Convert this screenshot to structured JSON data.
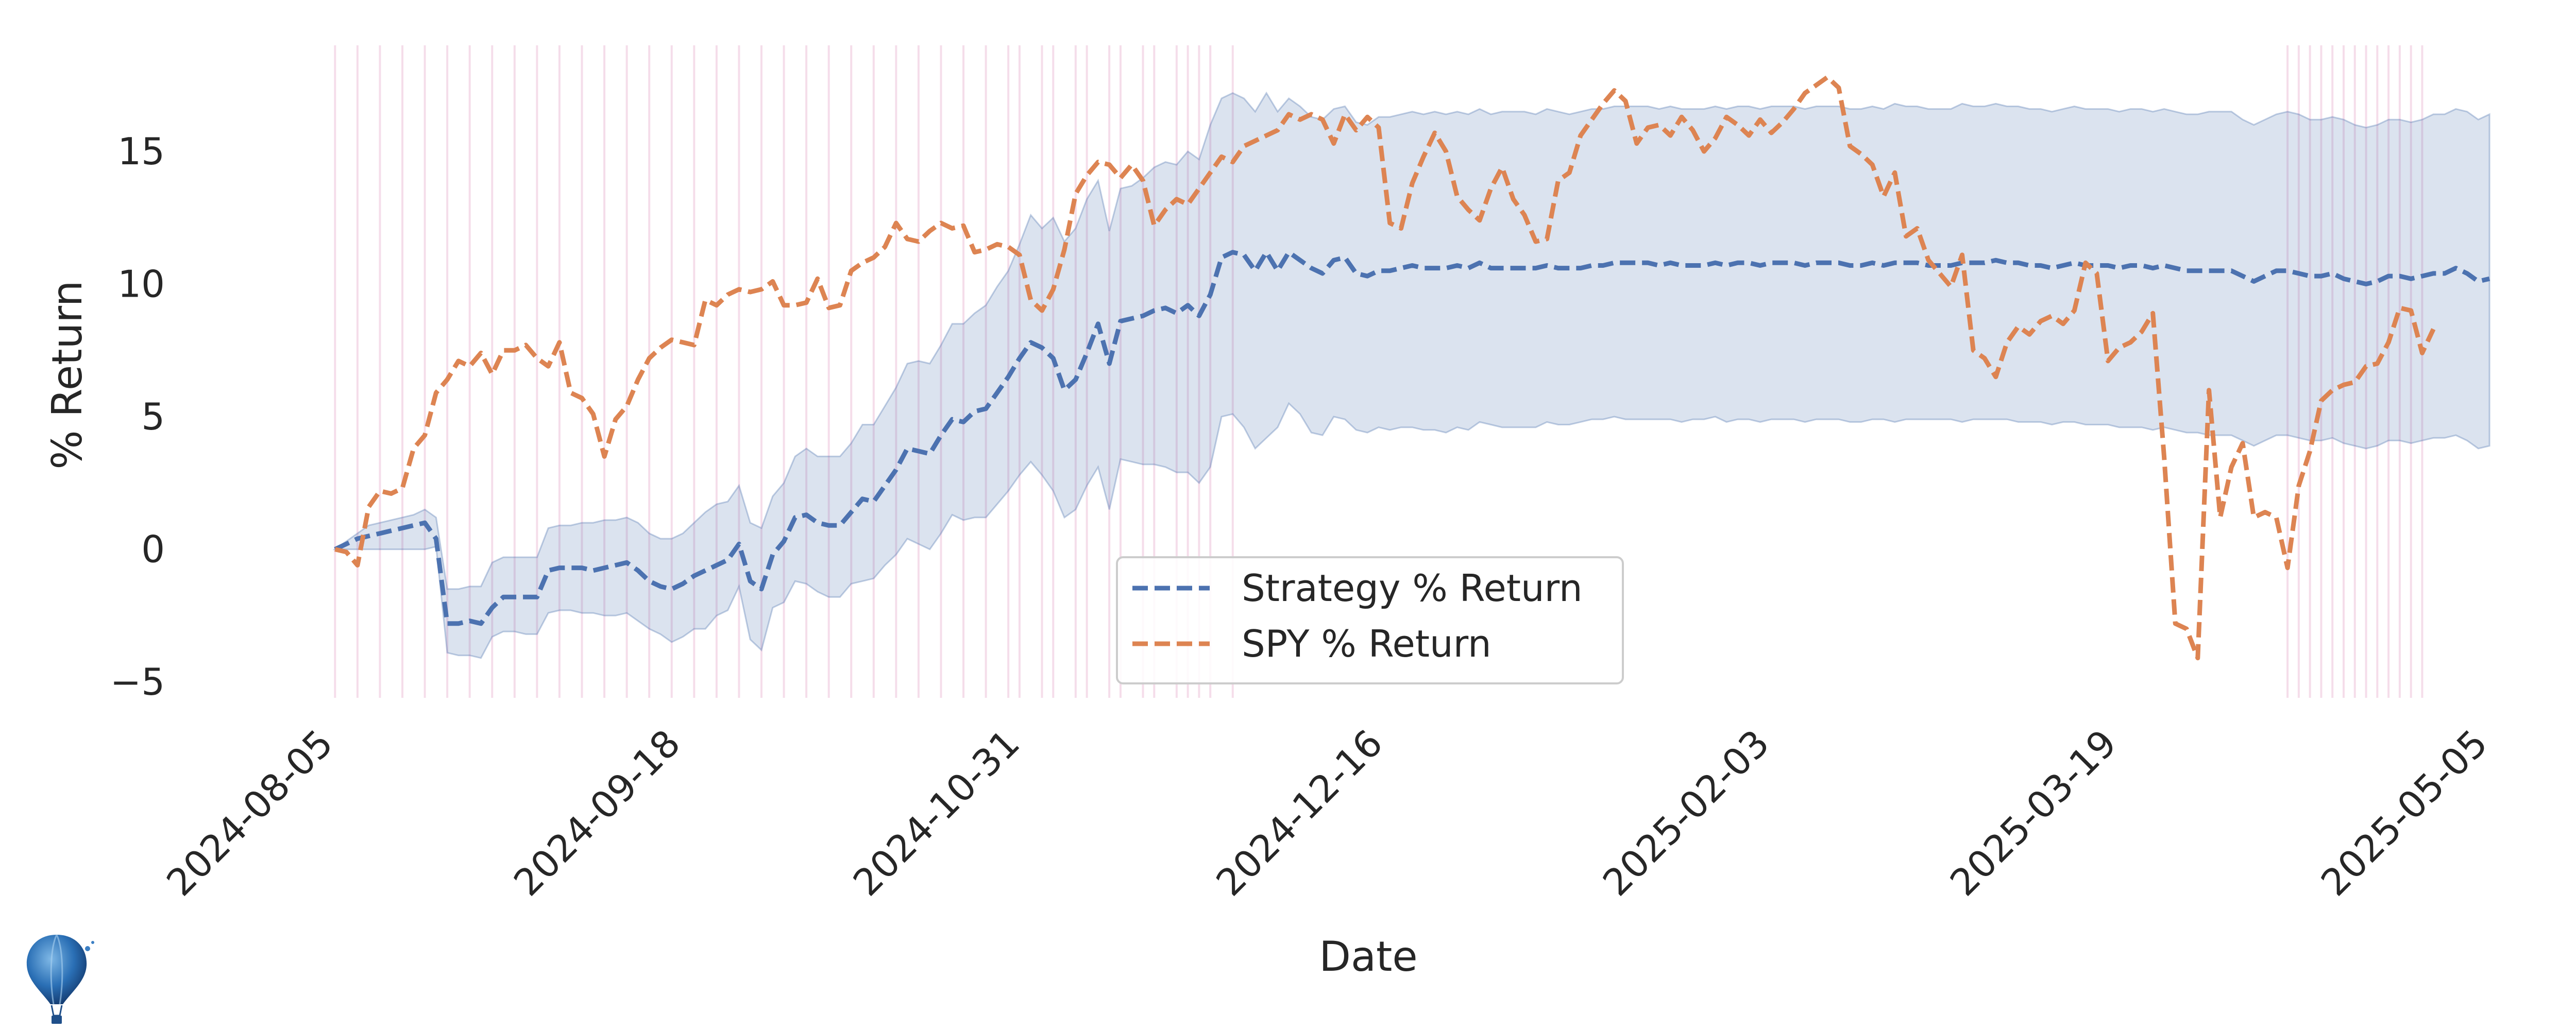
{
  "chart_data": {
    "type": "line",
    "title": "",
    "xlabel": "Date",
    "ylabel": "% Return",
    "ylim": [
      -5.6,
      19.0
    ],
    "yticks": [
      -5,
      0,
      5,
      10,
      15
    ],
    "ytick_labels": [
      "−5",
      "0",
      "5",
      "10",
      "15"
    ],
    "xlim": [
      -3,
      188
    ],
    "xticks": [
      {
        "label": "2024-08-05",
        "day": 0
      },
      {
        "label": "2024-09-18",
        "day": 44
      },
      {
        "label": "2024-10-31",
        "day": 87
      },
      {
        "label": "2024-12-16",
        "day": 133
      },
      {
        "label": "2025-02-03",
        "day": 182
      },
      {
        "label": "2025-03-19",
        "day": 226
      },
      {
        "label": "2025-05-05",
        "day": 273
      }
    ],
    "grid": false,
    "legend_position": "lower-center",
    "series": [
      {
        "name": "Strategy % Return",
        "color": "#4c72b0",
        "style": "dashed",
        "values": [
          0,
          0.2,
          0.4,
          0.5,
          0.6,
          0.7,
          0.8,
          0.9,
          1,
          0.4,
          -2.8,
          -2.8,
          -2.7,
          -2.8,
          -2.2,
          -1.8,
          -1.8,
          -1.8,
          -1.8,
          -0.8,
          -0.7,
          -0.7,
          -0.7,
          -0.8,
          -0.7,
          -0.6,
          -0.5,
          -0.8,
          -1.2,
          -1.4,
          -1.5,
          -1.3,
          -1,
          -0.8,
          -0.6,
          -0.4,
          0.2,
          -1.2,
          -1.5,
          -0.2,
          0.3,
          1.2,
          1.3,
          1.0,
          0.9,
          0.9,
          1.4,
          1.9,
          1.8,
          2.4,
          3.0,
          3.8,
          3.7,
          3.6,
          4.3,
          4.9,
          4.8,
          5.2,
          5.3,
          5.9,
          6.5,
          7.2,
          7.8,
          7.6,
          7.2,
          6.0,
          6.4,
          7.4,
          8.5,
          7.0,
          8.6,
          8.7,
          8.8,
          9.0,
          9.1,
          8.9,
          9.2,
          8.8,
          9.6,
          11.0,
          11.2,
          11.1,
          10.5,
          11.2,
          10.5,
          11.2,
          10.9,
          10.6,
          10.4,
          10.9,
          11.0,
          10.4,
          10.3,
          10.5,
          10.5,
          10.6,
          10.7,
          10.6,
          10.6,
          10.6,
          10.7,
          10.6,
          10.8,
          10.6,
          10.6,
          10.6,
          10.6,
          10.6,
          10.7,
          10.6,
          10.6,
          10.6,
          10.7,
          10.7,
          10.8,
          10.8,
          10.8,
          10.8,
          10.7,
          10.8,
          10.7,
          10.7,
          10.7,
          10.8,
          10.7,
          10.8,
          10.8,
          10.7,
          10.8,
          10.8,
          10.8,
          10.7,
          10.8,
          10.8,
          10.8,
          10.7,
          10.7,
          10.8,
          10.7,
          10.8,
          10.8,
          10.8,
          10.7,
          10.7,
          10.7,
          10.8,
          10.8,
          10.8,
          10.9,
          10.8,
          10.8,
          10.7,
          10.7,
          10.6,
          10.7,
          10.8,
          10.7,
          10.7,
          10.7,
          10.6,
          10.7,
          10.7,
          10.6,
          10.7,
          10.6,
          10.5,
          10.5,
          10.5,
          10.5,
          10.5,
          10.3,
          10.1,
          10.3,
          10.5,
          10.5,
          10.4,
          10.3,
          10.3,
          10.4,
          10.2,
          10.1,
          10.0,
          10.1,
          10.3,
          10.3,
          10.2,
          10.3,
          10.4,
          10.4,
          10.6,
          10.4,
          10.1,
          10.2
        ]
      },
      {
        "name": "SPY % Return",
        "color": "#dd8452",
        "style": "dashed",
        "values": [
          0,
          -0.1,
          -0.6,
          1.6,
          2.2,
          2.1,
          2.3,
          3.8,
          4.3,
          5.9,
          6.4,
          7.1,
          6.9,
          7.4,
          6.6,
          7.5,
          7.5,
          7.7,
          7.2,
          6.9,
          7.8,
          5.9,
          5.7,
          5.1,
          3.5,
          4.9,
          5.4,
          6.4,
          7.2,
          7.6,
          7.9,
          7.8,
          7.7,
          9.4,
          9.2,
          9.6,
          9.8,
          9.7,
          9.8,
          10.1,
          9.2,
          9.2,
          9.3,
          10.2,
          9.1,
          9.2,
          10.5,
          10.8,
          11.0,
          11.4,
          12.3,
          11.7,
          11.6,
          12.0,
          12.3,
          12.1,
          12.2,
          11.2,
          11.3,
          11.5,
          11.4,
          11.1,
          9.4,
          9.0,
          9.8,
          11.3,
          13.4,
          14.1,
          14.6,
          14.5,
          14.0,
          14.5,
          13.9,
          12.2,
          12.8,
          13.2,
          13.0,
          13.6,
          14.2,
          14.8,
          14.6,
          15.2,
          15.4,
          15.6,
          15.8,
          16.4,
          16.2,
          16.4,
          16.2,
          15.3,
          16.4,
          15.8,
          16.3,
          15.9,
          12.3,
          12.1,
          13.8,
          14.8,
          15.7,
          15.0,
          13.3,
          12.8,
          12.4,
          13.6,
          14.4,
          13.2,
          12.6,
          11.6,
          11.7,
          13.9,
          14.2,
          15.6,
          16.2,
          16.8,
          17.3,
          16.9,
          15.3,
          15.9,
          16.0,
          15.6,
          16.3,
          15.8,
          15.0,
          15.5,
          16.3,
          16.0,
          15.6,
          16.2,
          15.7,
          16.1,
          16.6,
          17.2,
          17.5,
          17.8,
          17.4,
          15.2,
          14.9,
          14.5,
          13.3,
          14.2,
          11.8,
          12.1,
          10.9,
          10.4,
          9.9,
          11.1,
          7.5,
          7.2,
          6.5,
          7.8,
          8.4,
          8.1,
          8.6,
          8.8,
          8.5,
          9.0,
          10.8,
          10.4,
          7.1,
          7.6,
          7.8,
          8.2,
          8.9,
          3.5,
          -2.8,
          -3.0,
          -4.1,
          6.0,
          1.2,
          3.1,
          4.0,
          1.2,
          1.4,
          1.2,
          -0.7,
          2.4,
          3.7,
          5.6,
          6.0,
          6.2,
          6.3,
          6.9,
          7.0,
          7.8,
          9.1,
          9.0,
          7.4,
          8.3
        ]
      }
    ],
    "band": {
      "color": "#4c72b0",
      "opacity": 0.2,
      "lower": [
        0,
        0,
        0,
        0,
        0,
        0,
        0,
        0,
        0,
        0.1,
        -3.9,
        -4.0,
        -4.0,
        -4.1,
        -3.3,
        -3.1,
        -3.1,
        -3.2,
        -3.2,
        -2.4,
        -2.3,
        -2.3,
        -2.4,
        -2.4,
        -2.5,
        -2.5,
        -2.4,
        -2.7,
        -3.0,
        -3.2,
        -3.5,
        -3.3,
        -3.0,
        -3.0,
        -2.5,
        -2.3,
        -1.4,
        -3.4,
        -3.8,
        -2.2,
        -2.0,
        -1.2,
        -1.3,
        -1.6,
        -1.8,
        -1.8,
        -1.3,
        -1.2,
        -1.1,
        -0.6,
        -0.2,
        0.4,
        0.2,
        0.0,
        0.6,
        1.3,
        1.1,
        1.2,
        1.2,
        1.7,
        2.2,
        2.8,
        3.3,
        2.8,
        2.2,
        1.2,
        1.5,
        2.4,
        3.1,
        1.5,
        3.4,
        3.3,
        3.2,
        3.2,
        3.1,
        2.9,
        2.9,
        2.5,
        3.1,
        5.0,
        5.1,
        4.6,
        3.8,
        4.2,
        4.6,
        5.5,
        5.1,
        4.4,
        4.3,
        5.0,
        4.9,
        4.5,
        4.4,
        4.6,
        4.5,
        4.6,
        4.6,
        4.5,
        4.5,
        4.4,
        4.6,
        4.5,
        4.8,
        4.7,
        4.6,
        4.6,
        4.6,
        4.6,
        4.8,
        4.7,
        4.7,
        4.8,
        4.9,
        4.9,
        5.0,
        4.9,
        4.9,
        4.9,
        4.9,
        4.9,
        4.8,
        4.9,
        4.9,
        5.0,
        4.8,
        4.9,
        4.9,
        4.8,
        4.9,
        4.9,
        4.9,
        4.8,
        4.9,
        4.9,
        4.9,
        4.8,
        4.8,
        4.9,
        4.9,
        4.8,
        4.9,
        4.9,
        4.9,
        4.9,
        4.9,
        4.8,
        4.9,
        4.9,
        4.9,
        4.9,
        4.8,
        4.8,
        4.8,
        4.7,
        4.8,
        4.8,
        4.7,
        4.7,
        4.7,
        4.6,
        4.6,
        4.6,
        4.5,
        4.6,
        4.5,
        4.4,
        4.4,
        4.3,
        4.3,
        4.3,
        4.1,
        3.9,
        4.1,
        4.3,
        4.3,
        4.2,
        4.1,
        4.1,
        4.2,
        4.0,
        3.9,
        3.8,
        3.9,
        4.1,
        4.1,
        4.0,
        4.1,
        4.2,
        4.2,
        4.3,
        4.1,
        3.8,
        3.9
      ],
      "upper": [
        0,
        0.3,
        0.6,
        0.9,
        1.0,
        1.1,
        1.2,
        1.3,
        1.5,
        1.2,
        -1.5,
        -1.5,
        -1.4,
        -1.4,
        -0.5,
        -0.3,
        -0.3,
        -0.3,
        -0.3,
        0.8,
        0.9,
        0.9,
        1.0,
        1.0,
        1.1,
        1.1,
        1.2,
        1.0,
        0.6,
        0.4,
        0.4,
        0.6,
        1.0,
        1.4,
        1.7,
        1.8,
        2.4,
        1.0,
        0.8,
        2.0,
        2.5,
        3.5,
        3.8,
        3.5,
        3.5,
        3.5,
        4.0,
        4.7,
        4.7,
        5.4,
        6.1,
        7.0,
        7.1,
        7.0,
        7.7,
        8.5,
        8.5,
        8.9,
        9.2,
        9.9,
        10.5,
        11.5,
        12.6,
        12.1,
        12.5,
        11.6,
        12.1,
        13.2,
        13.9,
        12.0,
        13.6,
        13.7,
        14.0,
        14.4,
        14.6,
        14.5,
        15.0,
        14.7,
        16.0,
        17.0,
        17.2,
        17.0,
        16.5,
        17.2,
        16.5,
        17.0,
        16.7,
        16.3,
        16.2,
        16.6,
        16.7,
        16.1,
        16.0,
        16.3,
        16.3,
        16.4,
        16.5,
        16.4,
        16.5,
        16.4,
        16.5,
        16.4,
        16.6,
        16.4,
        16.5,
        16.5,
        16.5,
        16.4,
        16.6,
        16.5,
        16.4,
        16.5,
        16.6,
        16.6,
        16.7,
        16.7,
        16.7,
        16.7,
        16.6,
        16.7,
        16.6,
        16.6,
        16.6,
        16.7,
        16.6,
        16.7,
        16.7,
        16.6,
        16.7,
        16.7,
        16.7,
        16.6,
        16.7,
        16.7,
        16.7,
        16.6,
        16.6,
        16.7,
        16.6,
        16.8,
        16.7,
        16.7,
        16.6,
        16.6,
        16.6,
        16.8,
        16.7,
        16.7,
        16.8,
        16.7,
        16.7,
        16.6,
        16.6,
        16.5,
        16.6,
        16.7,
        16.6,
        16.6,
        16.6,
        16.5,
        16.6,
        16.6,
        16.5,
        16.6,
        16.5,
        16.4,
        16.4,
        16.5,
        16.5,
        16.5,
        16.2,
        16.0,
        16.2,
        16.4,
        16.5,
        16.4,
        16.2,
        16.2,
        16.3,
        16.2,
        16.0,
        15.9,
        16.0,
        16.2,
        16.2,
        16.1,
        16.2,
        16.4,
        16.4,
        16.6,
        16.5,
        16.2,
        16.4
      ]
    },
    "vertical_markers": {
      "color": "#dd8eb8",
      "opacity": 0.3,
      "indices": [
        0,
        2,
        4,
        6,
        8,
        10,
        12,
        14,
        16,
        18,
        20,
        22,
        24,
        26,
        28,
        30,
        32,
        34,
        36,
        38,
        40,
        42,
        44,
        46,
        48,
        50,
        52,
        54,
        56,
        58,
        60,
        61,
        63,
        64,
        66,
        67,
        69,
        70,
        72,
        73,
        75,
        76,
        77,
        78,
        80,
        174,
        175,
        176,
        177,
        178,
        179,
        180,
        181,
        182,
        183,
        184,
        185,
        186
      ]
    }
  }
}
